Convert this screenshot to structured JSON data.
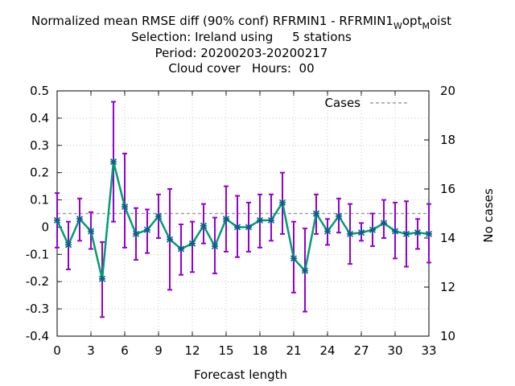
{
  "chart_data": {
    "type": "line",
    "title": {
      "line1_main": "Normalized mean RMSE diff (90% conf) RFRMIN1 - RFRMIN1",
      "line1_sub1": "W",
      "line1_mid": "opt",
      "line1_sub2": "M",
      "line1_end": "oist",
      "line2": "Selection: Ireland using     5 stations",
      "line3": "Period: 20200203-20200217",
      "line4": "Cloud cover   Hours:  00"
    },
    "xlabel": "Forecast length",
    "ylabel_right": "No cases",
    "xlim": [
      0,
      33
    ],
    "ylim": [
      -0.4,
      0.5
    ],
    "y2lim": [
      10,
      20
    ],
    "xticks": [
      "0",
      "3",
      "6",
      "9",
      "12",
      "15",
      "18",
      "21",
      "24",
      "27",
      "30",
      "33"
    ],
    "yticks": [
      "-0.4",
      "-0.3",
      "-0.2",
      "-0.1",
      "0",
      "0.1",
      "0.2",
      "0.3",
      "0.4",
      "0.5"
    ],
    "y2ticks": [
      "10",
      "12",
      "14",
      "16",
      "18",
      "20"
    ],
    "legend": {
      "label": "Cases",
      "position": "top-right"
    },
    "series": [
      {
        "x": [
          0,
          1,
          2,
          3,
          4,
          5,
          6,
          7,
          8,
          9,
          10,
          11,
          12,
          13,
          14,
          15,
          16,
          17,
          18,
          19,
          20,
          21,
          22,
          23,
          24,
          25,
          26,
          27,
          28,
          29,
          30,
          31,
          32,
          33
        ],
        "values": [
          0.025,
          -0.065,
          0.03,
          -0.015,
          -0.19,
          0.24,
          0.075,
          -0.025,
          -0.01,
          0.04,
          -0.045,
          -0.08,
          -0.06,
          0.005,
          -0.07,
          0.03,
          0.0,
          0.0,
          0.025,
          0.025,
          0.09,
          -0.115,
          -0.16,
          0.05,
          -0.015,
          0.04,
          -0.025,
          -0.02,
          -0.01,
          0.015,
          -0.015,
          -0.025,
          -0.02,
          -0.025
        ],
        "err_low": [
          -0.075,
          -0.155,
          -0.05,
          -0.08,
          -0.33,
          0.02,
          -0.075,
          -0.12,
          -0.095,
          -0.04,
          -0.23,
          -0.175,
          -0.165,
          -0.06,
          -0.17,
          -0.09,
          -0.11,
          -0.09,
          -0.075,
          -0.05,
          -0.025,
          -0.24,
          -0.31,
          -0.025,
          -0.065,
          -0.02,
          -0.135,
          -0.05,
          -0.07,
          -0.04,
          -0.115,
          -0.145,
          -0.08,
          -0.13
        ],
        "err_high": [
          0.125,
          0.02,
          0.105,
          0.055,
          -0.055,
          0.46,
          0.27,
          0.07,
          0.065,
          0.12,
          0.14,
          0.01,
          0.02,
          0.085,
          0.035,
          0.15,
          0.115,
          0.09,
          0.12,
          0.12,
          0.2,
          0.02,
          -0.005,
          0.12,
          0.03,
          0.105,
          0.085,
          0.015,
          0.05,
          0.1,
          0.09,
          0.095,
          0.03,
          0.085
        ]
      },
      {
        "name": "Cases",
        "x": [
          0,
          33
        ],
        "values": [
          15,
          15
        ]
      }
    ],
    "colors": {
      "line": "#009e73",
      "errorbar": "#9400d3",
      "marker": "#0a5f8a",
      "cases": "#a0a0a0"
    }
  }
}
